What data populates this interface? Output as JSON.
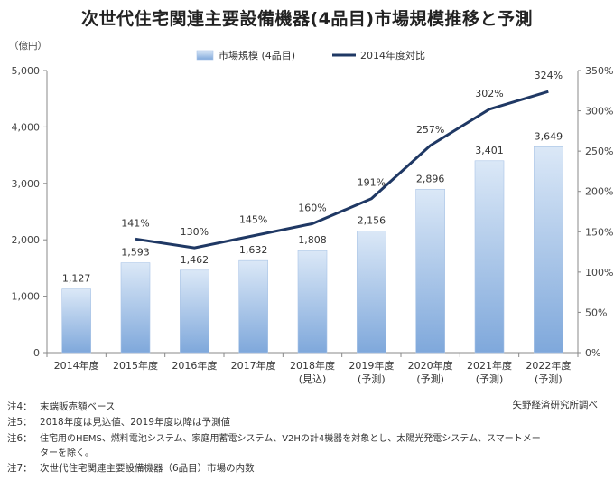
{
  "title": "次世代住宅関連主要設備機器(4品目)市場規模推移と予測",
  "unit_left": "（億円）",
  "source": "矢野経済研究所調べ",
  "notes": [
    {
      "label": "注4：",
      "text": "末端販売額ベース"
    },
    {
      "label": "注5：",
      "text": "2018年度は見込値、2019年度以降は予測値"
    },
    {
      "label": "注6：",
      "text": "住宅用のHEMS、燃料電池システム、家庭用蓄電システム、V2Hの計4機器を対象とし、太陽光発電システム、スマートメー"
    },
    {
      "label": "",
      "text": "ターを除く。"
    },
    {
      "label": "注7：",
      "text": "次世代住宅関連主要設備機器（6品目）市場の内数"
    }
  ],
  "chart_data": {
    "type": "bar",
    "categories": [
      "2014年度",
      "2015年度",
      "2016年度",
      "2017年度",
      "2018年度",
      "2019年度",
      "2020年度",
      "2021年度",
      "2022年度"
    ],
    "category_sublabels": [
      "",
      "",
      "",
      "",
      "(見込)",
      "(予測)",
      "(予測)",
      "(予測)",
      "(予測)"
    ],
    "series": [
      {
        "name": "市場規模 (4品目)",
        "type": "bar",
        "axis": "left",
        "values": [
          1127,
          1593,
          1462,
          1632,
          1808,
          2156,
          2896,
          3401,
          3649
        ],
        "labels": [
          "1,127",
          "1,593",
          "1,462",
          "1,632",
          "1,808",
          "2,156",
          "2,896",
          "3,401",
          "3,649"
        ]
      },
      {
        "name": "2014年度対比",
        "type": "line",
        "axis": "right",
        "values": [
          null,
          141,
          130,
          145,
          160,
          191,
          257,
          302,
          324
        ],
        "labels": [
          "",
          "141%",
          "130%",
          "145%",
          "160%",
          "191%",
          "257%",
          "302%",
          "324%"
        ]
      }
    ],
    "ylim_left": [
      0,
      5000
    ],
    "yticks_left": [
      "0",
      "1,000",
      "2,000",
      "3,000",
      "4,000",
      "5,000"
    ],
    "ylim_right": [
      0,
      350
    ],
    "yticks_right": [
      "0%",
      "50%",
      "100%",
      "150%",
      "200%",
      "250%",
      "300%",
      "350%"
    ],
    "grid": false,
    "legend_position": "top-center",
    "colors": {
      "bar_top": "#dbe8f7",
      "bar_bottom": "#7fa8db",
      "line": "#1f3864"
    }
  }
}
